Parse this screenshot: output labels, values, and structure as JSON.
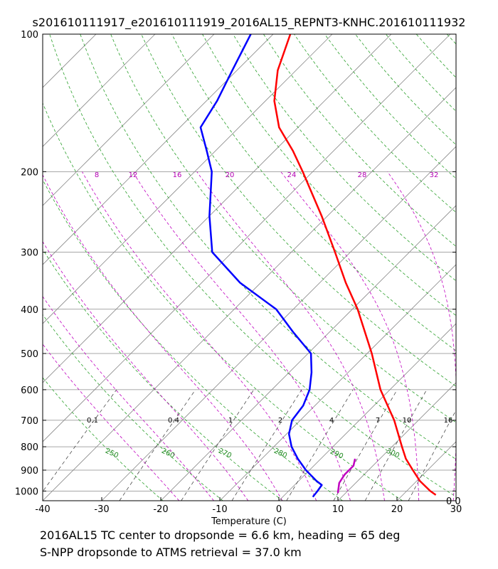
{
  "chart_data": {
    "type": "line",
    "title": "s201610111917_e201610111919_2016AL15_REPNT3-KNHC.201610111932",
    "xlabel": "Temperature (C)",
    "ylabel": "",
    "x_ticks": [
      -40,
      -30,
      -20,
      -10,
      0,
      10,
      20,
      30
    ],
    "y_ticks": [
      100,
      200,
      300,
      400,
      500,
      600,
      700,
      800,
      900,
      1000
    ],
    "xlim": [
      -40,
      30
    ],
    "ylim": [
      1050,
      100
    ],
    "y_scale": "log",
    "skew": "skew-T log-p",
    "grid": true,
    "series": [
      {
        "color": "#ff0000",
        "p": [
          100,
          120,
          140,
          160,
          180,
          200,
          250,
          300,
          350,
          400,
          500,
          600,
          700,
          800,
          850,
          900,
          950,
          1000,
          1020
        ],
        "t": [
          -77.1,
          -73.1,
          -68.5,
          -63.2,
          -56.9,
          -51.7,
          -41.0,
          -32.6,
          -25.6,
          -19.1,
          -9.2,
          -1.6,
          5.9,
          11.7,
          14.4,
          17.5,
          20.5,
          24.0,
          25.6
        ]
      },
      {
        "color": "#0000ff",
        "p": [
          100,
          120,
          140,
          160,
          180,
          200,
          250,
          300,
          350,
          400,
          450,
          500,
          550,
          600,
          650,
          700,
          750,
          800,
          850,
          900,
          950,
          970,
          1000,
          1030
        ],
        "t": [
          -83.8,
          -80.8,
          -78.2,
          -76.5,
          -71.5,
          -67.1,
          -60.0,
          -53.4,
          -43.5,
          -32.9,
          -26.0,
          -19.5,
          -16.2,
          -13.6,
          -12.0,
          -11.4,
          -9.6,
          -7.0,
          -3.9,
          -0.6,
          3.0,
          4.6,
          4.9,
          5.1
        ]
      },
      {
        "color": "#c000c0",
        "p": [
          850,
          880,
          920,
          960,
          1000,
          1010
        ],
        "t": [
          5.8,
          6.7,
          6.7,
          7.2,
          8.4,
          8.7
        ]
      }
    ],
    "isobars": [
      100,
      200,
      300,
      400,
      500,
      600,
      700,
      800,
      900,
      1000
    ],
    "isotherms": [
      -130,
      -120,
      -110,
      -100,
      -90,
      -80,
      -70,
      -60,
      -50,
      -40,
      -30,
      -20,
      -10,
      0,
      10,
      20,
      30
    ],
    "mixing_ratio_labels": [
      "0.1",
      "0.4",
      "1",
      "2",
      "4",
      "7",
      "10",
      "16"
    ],
    "mixing_ratio_values": [
      0.1,
      0.4,
      1,
      2,
      4,
      7,
      10,
      16
    ],
    "potential_temp_labels": [
      "250",
      "260",
      "270",
      "280",
      "290",
      "300"
    ],
    "potential_temp_values": [
      250,
      260,
      270,
      280,
      290,
      300
    ],
    "equiv_potential_labels": [
      "8",
      "12",
      "16",
      "20",
      "24",
      "28",
      "32"
    ],
    "equiv_potential_values": [
      8,
      12,
      16,
      20,
      24,
      28,
      32
    ]
  },
  "corner_label": "0 0",
  "footer": {
    "line1": "2016AL15   TC center to dropsonde =   6.6 km, heading =  65 deg",
    "line2": "S-NPP         dropsonde to ATMS retrieval =  37.0 km"
  }
}
